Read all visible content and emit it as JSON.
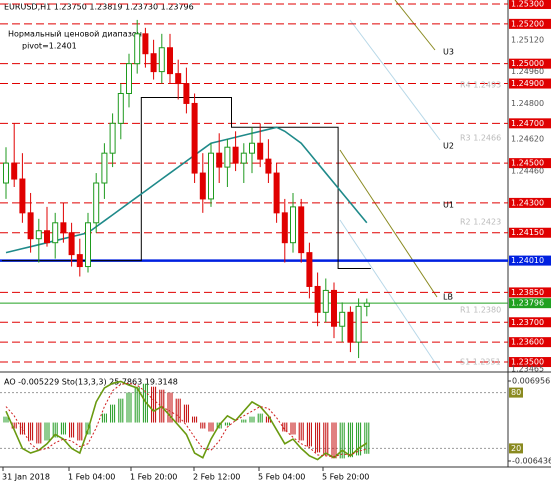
{
  "header": "EURUSD,H1  1.23750 1.23819 1.23730 1.23796",
  "notes": [
    "Нормальный ценовой диапазон",
    "pivot=1.2401"
  ],
  "band_labels": [
    "U3",
    "U2",
    "U1",
    "LB"
  ],
  "pivot_labels": [
    "R4 1.2493",
    "R3 1.2466",
    "R2 1.2423",
    "R1 1.2380",
    "S1 1.2351"
  ],
  "time_labels": [
    "31 Jan 2018",
    "1 Feb 04:00",
    "1 Feb 20:00",
    "2 Feb 12:00",
    "5 Feb 04:00",
    "5 Feb 20:00"
  ],
  "chart_data": {
    "type": "candlestick",
    "ylim": [
      1.2346,
      1.2532
    ],
    "yticks": [
      {
        "value": 1.253,
        "label": "1.25300",
        "color": "#e00000"
      },
      {
        "value": 1.252,
        "label": "1.25200",
        "color": "#e00000"
      },
      {
        "value": 1.2512,
        "label": "1.25120"
      },
      {
        "value": 1.25,
        "label": "1.25000",
        "color": "#e00000"
      },
      {
        "value": 1.2496,
        "label": "1.24960"
      },
      {
        "value": 1.249,
        "label": "1.24900",
        "color": "#e00000"
      },
      {
        "value": 1.248,
        "label": "1.24800"
      },
      {
        "value": 1.247,
        "label": "1.24700",
        "color": "#e00000"
      },
      {
        "value": 1.2462,
        "label": "1.24620"
      },
      {
        "value": 1.245,
        "label": "1.24500",
        "color": "#e00000"
      },
      {
        "value": 1.2446,
        "label": "1.24460"
      },
      {
        "value": 1.243,
        "label": "1.24300",
        "color": "#e00000"
      },
      {
        "value": 1.2415,
        "label": "1.24150",
        "color": "#e00000"
      },
      {
        "value": 1.2401,
        "label": "1.24010",
        "color": "#0020e0"
      },
      {
        "value": 1.2385,
        "label": "1.23850",
        "color": "#e00000"
      },
      {
        "value": 1.23796,
        "label": "1.23796",
        "color": "#20a020"
      },
      {
        "value": 1.237,
        "label": "1.23700",
        "color": "#e00000"
      },
      {
        "value": 1.236,
        "label": "1.23600",
        "color": "#e00000"
      },
      {
        "value": 1.235,
        "label": "1.23500",
        "color": "#e00000"
      },
      {
        "value": 1.23465,
        "label": "1.23465"
      }
    ],
    "up_color": "#1e9a1e",
    "down_color": "#e00000",
    "ma_color": "#1f8a8a",
    "pivot_color": "#000000",
    "open": [
      1.244,
      1.245,
      1.2442,
      1.2425,
      1.2412,
      1.2416,
      1.241,
      1.242,
      1.2415,
      1.2404,
      1.2398,
      1.242,
      1.244,
      1.2455,
      1.247,
      1.2485,
      1.25,
      1.2515,
      1.2505,
      1.2496,
      1.2508,
      1.2495,
      1.249,
      1.248,
      1.2445,
      1.2432,
      1.2455,
      1.2448,
      1.2458,
      1.245,
      1.2455,
      1.246,
      1.2452,
      1.2445,
      1.2425,
      1.241,
      1.2428,
      1.2405,
      1.2388,
      1.2375,
      1.2386,
      1.2368,
      1.2375,
      1.236,
      1.2378
    ],
    "high": [
      1.2458,
      1.247,
      1.2455,
      1.2435,
      1.2422,
      1.2428,
      1.2425,
      1.243,
      1.242,
      1.2412,
      1.2425,
      1.2445,
      1.246,
      1.2475,
      1.249,
      1.2505,
      1.2522,
      1.2518,
      1.2512,
      1.2515,
      1.2515,
      1.2502,
      1.2498,
      1.2485,
      1.2455,
      1.246,
      1.2465,
      1.2462,
      1.2466,
      1.246,
      1.2468,
      1.247,
      1.2462,
      1.245,
      1.2432,
      1.2435,
      1.2432,
      1.241,
      1.2395,
      1.2392,
      1.239,
      1.238,
      1.2378,
      1.2382,
      1.23819
    ],
    "low": [
      1.2432,
      1.2438,
      1.242,
      1.2405,
      1.24,
      1.2408,
      1.2402,
      1.241,
      1.2398,
      1.2393,
      1.2395,
      1.2415,
      1.2432,
      1.2448,
      1.2462,
      1.2478,
      1.2495,
      1.2498,
      1.2492,
      1.249,
      1.249,
      1.2482,
      1.2475,
      1.244,
      1.2425,
      1.2428,
      1.244,
      1.2438,
      1.2446,
      1.244,
      1.2445,
      1.2448,
      1.244,
      1.242,
      1.24,
      1.2405,
      1.24,
      1.2382,
      1.2368,
      1.237,
      1.2362,
      1.236,
      1.2355,
      1.2352,
      1.2373
    ],
    "close": [
      1.245,
      1.2442,
      1.2425,
      1.2412,
      1.2416,
      1.241,
      1.242,
      1.2415,
      1.2404,
      1.2398,
      1.242,
      1.244,
      1.2455,
      1.247,
      1.2485,
      1.25,
      1.2515,
      1.2505,
      1.2496,
      1.2508,
      1.2495,
      1.249,
      1.248,
      1.2445,
      1.2432,
      1.2455,
      1.2448,
      1.2458,
      1.245,
      1.2455,
      1.246,
      1.2452,
      1.2445,
      1.2425,
      1.241,
      1.2428,
      1.2405,
      1.2388,
      1.2375,
      1.2386,
      1.2368,
      1.2375,
      1.236,
      1.2378,
      1.23796
    ],
    "ma": [
      1.2405,
      1.2406,
      1.2407,
      1.2408,
      1.2409,
      1.241,
      1.2411,
      1.2412,
      1.2413,
      1.2414,
      1.2415,
      1.2418,
      1.2421,
      1.2424,
      1.2427,
      1.243,
      1.2433,
      1.2436,
      1.2439,
      1.2442,
      1.2445,
      1.2448,
      1.2451,
      1.2454,
      1.2457,
      1.246,
      1.2461,
      1.2462,
      1.2463,
      1.2464,
      1.2465,
      1.2466,
      1.2467,
      1.2468,
      1.2466,
      1.2463,
      1.246,
      1.2455,
      1.245,
      1.2445,
      1.244,
      1.2435,
      1.243,
      1.2425,
      1.242
    ],
    "pivot_step": [
      1.2401,
      1.2401,
      1.2401,
      1.2401,
      1.2401,
      1.2401,
      1.2401,
      1.2401,
      1.2401,
      1.2401,
      1.2401,
      1.2401,
      1.2401,
      1.2401,
      1.2401,
      1.2401,
      1.2401,
      1.2483,
      1.2483,
      1.2483,
      1.2483,
      1.2483,
      1.2483,
      1.2483,
      1.2483,
      1.2483,
      1.2483,
      1.2483,
      1.2468,
      1.2468,
      1.2468,
      1.2468,
      1.2468,
      1.2468,
      1.2468,
      1.2468,
      1.2468,
      1.2468,
      1.2468,
      1.2468,
      1.2468,
      1.2397,
      1.2397,
      1.2397,
      1.2397
    ]
  },
  "indicator": {
    "title": "AO -0.005229  Sto(13,3,3) 25.7863 19.3148",
    "ao_lim": [
      -0.00744,
      0.008128
    ],
    "ao_ticks": [
      {
        "value": 0.006956,
        "label": "0.006956"
      },
      {
        "value": -0.006436,
        "label": "-0.006436"
      }
    ],
    "stoch_lim": [
      0,
      100
    ],
    "stoch_ticks": [
      80,
      20
    ],
    "ao": [
      0.001,
      -0.001,
      -0.002,
      -0.003,
      -0.0035,
      -0.003,
      -0.0025,
      -0.002,
      -0.0025,
      -0.003,
      -0.002,
      0,
      0.0015,
      0.003,
      0.004,
      0.005,
      0.006,
      0.0065,
      0.006,
      0.0055,
      0.005,
      0.004,
      0.003,
      0.001,
      -0.001,
      -0.0015,
      -0.001,
      -0.0005,
      0,
      0.0005,
      0.001,
      0.0015,
      0.001,
      0,
      -0.0015,
      -0.002,
      -0.003,
      -0.004,
      -0.005,
      -0.0055,
      -0.006,
      -0.006,
      -0.0058,
      -0.0055,
      -0.005229
    ],
    "stoch_main": [
      60,
      40,
      20,
      15,
      18,
      25,
      35,
      30,
      20,
      15,
      40,
      70,
      85,
      90,
      92,
      88,
      85,
      70,
      60,
      65,
      55,
      45,
      35,
      15,
      10,
      30,
      45,
      55,
      50,
      60,
      70,
      65,
      55,
      40,
      25,
      30,
      20,
      12,
      8,
      15,
      10,
      18,
      12,
      20,
      25.7863
    ],
    "stoch_signal": [
      65,
      55,
      40,
      25,
      18,
      20,
      26,
      30,
      28,
      22,
      25,
      42,
      65,
      82,
      89,
      90,
      88,
      81,
      72,
      65,
      60,
      55,
      45,
      32,
      20,
      18,
      28,
      43,
      50,
      55,
      60,
      65,
      63,
      53,
      40,
      32,
      25,
      21,
      13,
      12,
      11,
      14,
      13,
      17,
      19.3148
    ]
  }
}
